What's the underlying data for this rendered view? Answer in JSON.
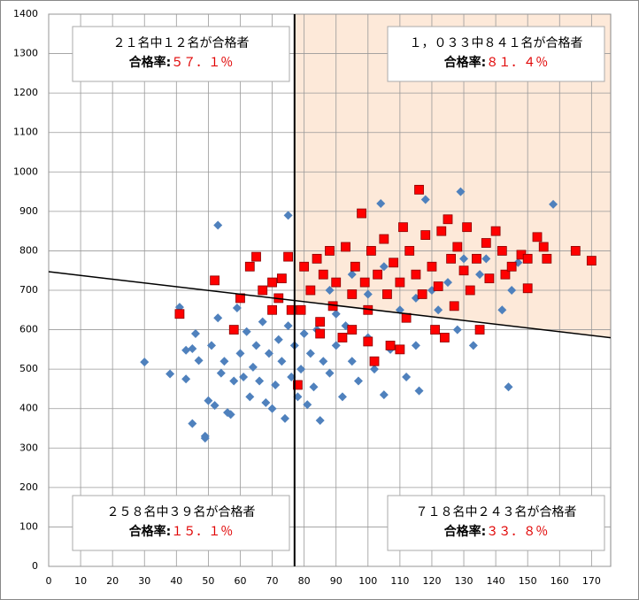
{
  "chart_data": {
    "type": "scatter",
    "xlim": [
      0,
      176
    ],
    "ylim": [
      0,
      1400
    ],
    "xticks": [
      0,
      10,
      20,
      30,
      40,
      50,
      60,
      70,
      80,
      90,
      100,
      110,
      120,
      130,
      140,
      150,
      160,
      170
    ],
    "yticks": [
      0,
      100,
      200,
      300,
      400,
      500,
      600,
      700,
      800,
      900,
      1000,
      1100,
      1200,
      1300,
      1400
    ],
    "grid": true,
    "vline": 77,
    "trendline": {
      "intercept": 747,
      "slope": -0.95
    },
    "shade_color": "#fde9d9",
    "series": [
      {
        "color": "#4f81bd",
        "marker": "diamond",
        "x": [
          30,
          38,
          41,
          41,
          43,
          43,
          45,
          45,
          46,
          47,
          49,
          49,
          50,
          51,
          52,
          53,
          53,
          54,
          55,
          56,
          57,
          58,
          59,
          60,
          61,
          62,
          63,
          64,
          65,
          66,
          67,
          68,
          69,
          70,
          71,
          72,
          73,
          74,
          75,
          75,
          76,
          77,
          78,
          79,
          80,
          81,
          82,
          83,
          84,
          85,
          86,
          88,
          90,
          92,
          93,
          95,
          97,
          100,
          102,
          104,
          105,
          107,
          110,
          112,
          115,
          116,
          118,
          120,
          122,
          125,
          128,
          129,
          130,
          133,
          135,
          137,
          140,
          142,
          144,
          145,
          147,
          158,
          88,
          95,
          100,
          105,
          110,
          115,
          90,
          120
        ],
        "y": [
          518,
          488,
          657,
          640,
          475,
          548,
          362,
          552,
          590,
          522,
          325,
          330,
          420,
          560,
          408,
          865,
          630,
          490,
          520,
          390,
          385,
          470,
          655,
          540,
          480,
          595,
          430,
          505,
          560,
          470,
          620,
          415,
          540,
          400,
          460,
          575,
          520,
          375,
          890,
          610,
          480,
          560,
          430,
          500,
          590,
          410,
          540,
          455,
          600,
          370,
          520,
          490,
          560,
          430,
          610,
          520,
          470,
          580,
          500,
          920,
          435,
          550,
          650,
          480,
          560,
          445,
          930,
          700,
          650,
          720,
          600,
          950,
          780,
          560,
          740,
          780,
          850,
          650,
          455,
          700,
          770,
          918,
          700,
          740,
          690,
          760,
          720,
          680,
          640,
          760
        ]
      },
      {
        "color": "#ff0000",
        "marker": "square",
        "x": [
          41,
          52,
          58,
          63,
          65,
          67,
          70,
          72,
          73,
          75,
          76,
          78,
          79,
          80,
          82,
          84,
          85,
          86,
          88,
          89,
          90,
          92,
          93,
          95,
          96,
          98,
          99,
          100,
          101,
          102,
          103,
          105,
          106,
          107,
          108,
          110,
          111,
          112,
          113,
          115,
          116,
          117,
          118,
          120,
          121,
          122,
          123,
          124,
          125,
          126,
          127,
          128,
          130,
          131,
          132,
          134,
          135,
          137,
          138,
          140,
          142,
          143,
          145,
          148,
          150,
          150,
          153,
          155,
          156,
          165,
          170,
          60,
          70,
          95,
          100,
          110,
          85
        ],
        "y": [
          640,
          725,
          600,
          760,
          785,
          700,
          720,
          680,
          730,
          785,
          650,
          460,
          650,
          760,
          700,
          780,
          620,
          740,
          800,
          660,
          720,
          580,
          810,
          690,
          760,
          895,
          720,
          650,
          800,
          520,
          740,
          830,
          690,
          560,
          770,
          720,
          860,
          630,
          800,
          740,
          955,
          690,
          840,
          760,
          600,
          710,
          850,
          580,
          880,
          780,
          660,
          810,
          750,
          860,
          700,
          780,
          600,
          820,
          730,
          850,
          800,
          740,
          760,
          790,
          780,
          705,
          835,
          810,
          780,
          800,
          775,
          680,
          650,
          600,
          570,
          550,
          590
        ]
      }
    ],
    "annotations": [
      {
        "line1": "２１名中１２名が合格者",
        "label": "合格率:",
        "rate": "５７．１％"
      },
      {
        "line1": "１，０３３中８４１名が合格者",
        "label": "合格率:",
        "rate": "８１．４％"
      },
      {
        "line1": "２５８名中３９名が合格者",
        "label": "合格率:",
        "rate": "１５．１％"
      },
      {
        "line1": "７１８名中２４３名が合格者",
        "label": "合格率:",
        "rate": "３３．８％"
      }
    ]
  }
}
